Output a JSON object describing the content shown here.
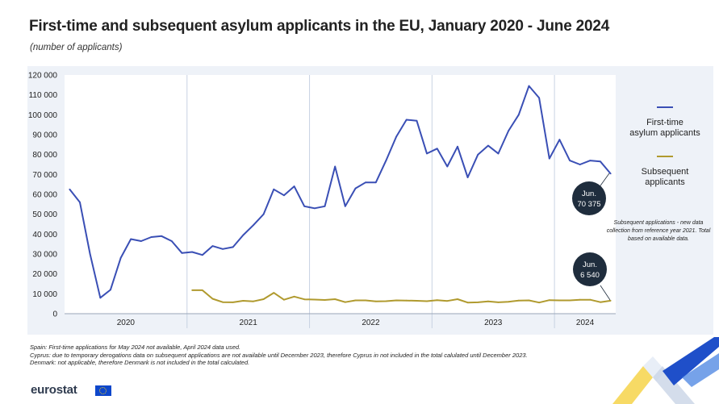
{
  "title": "First-time and subsequent asylum applicants in the EU, January 2020 - June 2024",
  "subtitle": "(number of applicants)",
  "legend": {
    "first_time": "First-time\nasylum applicants",
    "subsequent": "Subsequent\napplicants"
  },
  "note": "Subsequent applications - new data collection from reference year 2021. Total based on available data.",
  "callouts": {
    "first_time": {
      "month": "Jun.",
      "value": "70 375"
    },
    "subsequent": {
      "month": "Jun.",
      "value": "6 540"
    }
  },
  "footnotes": [
    "Spain: First-time applications for May 2024 not available, April 2024 data used.",
    "Cyprus: due to temporary derogations data on subsequent applications are not available until December 2023, therefore Cyprus in not included in the total calulated until December 2023.",
    "Denmark: not applicable, therefore Denmark is not included in the total calculated."
  ],
  "logo": {
    "text": "eurostat"
  },
  "colors": {
    "first_time": "#3a4fb5",
    "subsequent": "#b09a2e",
    "panel": "#eef2f8",
    "callout": "#1f2d3d"
  },
  "chart_data": {
    "type": "line",
    "title": "First-time and subsequent asylum applicants in the EU, January 2020 - June 2024",
    "ylabel": "number of applicants",
    "xlabel": "",
    "ylim": [
      0,
      120000
    ],
    "y_ticks": [
      0,
      10000,
      20000,
      30000,
      40000,
      50000,
      60000,
      70000,
      80000,
      90000,
      100000,
      110000,
      120000
    ],
    "y_tick_labels": [
      "0",
      "10 000",
      "20 000",
      "30 000",
      "40 000",
      "50 000",
      "60 000",
      "70 000",
      "80 000",
      "90 000",
      "100 000",
      "110 000",
      "120 000"
    ],
    "x_groups": [
      "2020",
      "2021",
      "2022",
      "2023",
      "2024"
    ],
    "months_per_group": [
      12,
      12,
      12,
      12,
      6
    ],
    "series": [
      {
        "name": "First-time asylum applicants",
        "start_index": 0,
        "values": [
          62500,
          56000,
          30000,
          8000,
          12000,
          28000,
          37500,
          36500,
          38500,
          39000,
          36500,
          30500,
          31000,
          29500,
          34000,
          32500,
          33500,
          39500,
          44500,
          50000,
          62500,
          59500,
          64000,
          54000,
          53000,
          54000,
          74000,
          54000,
          63000,
          66000,
          66000,
          77000,
          89000,
          97500,
          97000,
          80500,
          83000,
          74000,
          84000,
          68500,
          80000,
          84500,
          80500,
          92000,
          100000,
          114500,
          108500,
          78000,
          87500,
          77000,
          75000,
          77000,
          76500,
          70375
        ]
      },
      {
        "name": "Subsequent applicants",
        "start_index": 12,
        "values": [
          11800,
          11800,
          7500,
          5800,
          5700,
          6500,
          6200,
          7300,
          10500,
          7000,
          8600,
          7200,
          7100,
          6900,
          7300,
          5800,
          6700,
          6700,
          6200,
          6300,
          6700,
          6600,
          6500,
          6300,
          6800,
          6400,
          7300,
          5600,
          5700,
          6200,
          5700,
          6000,
          6600,
          6700,
          5600,
          6800,
          6700,
          6700,
          7000,
          7000,
          5800,
          6540
        ]
      }
    ]
  }
}
